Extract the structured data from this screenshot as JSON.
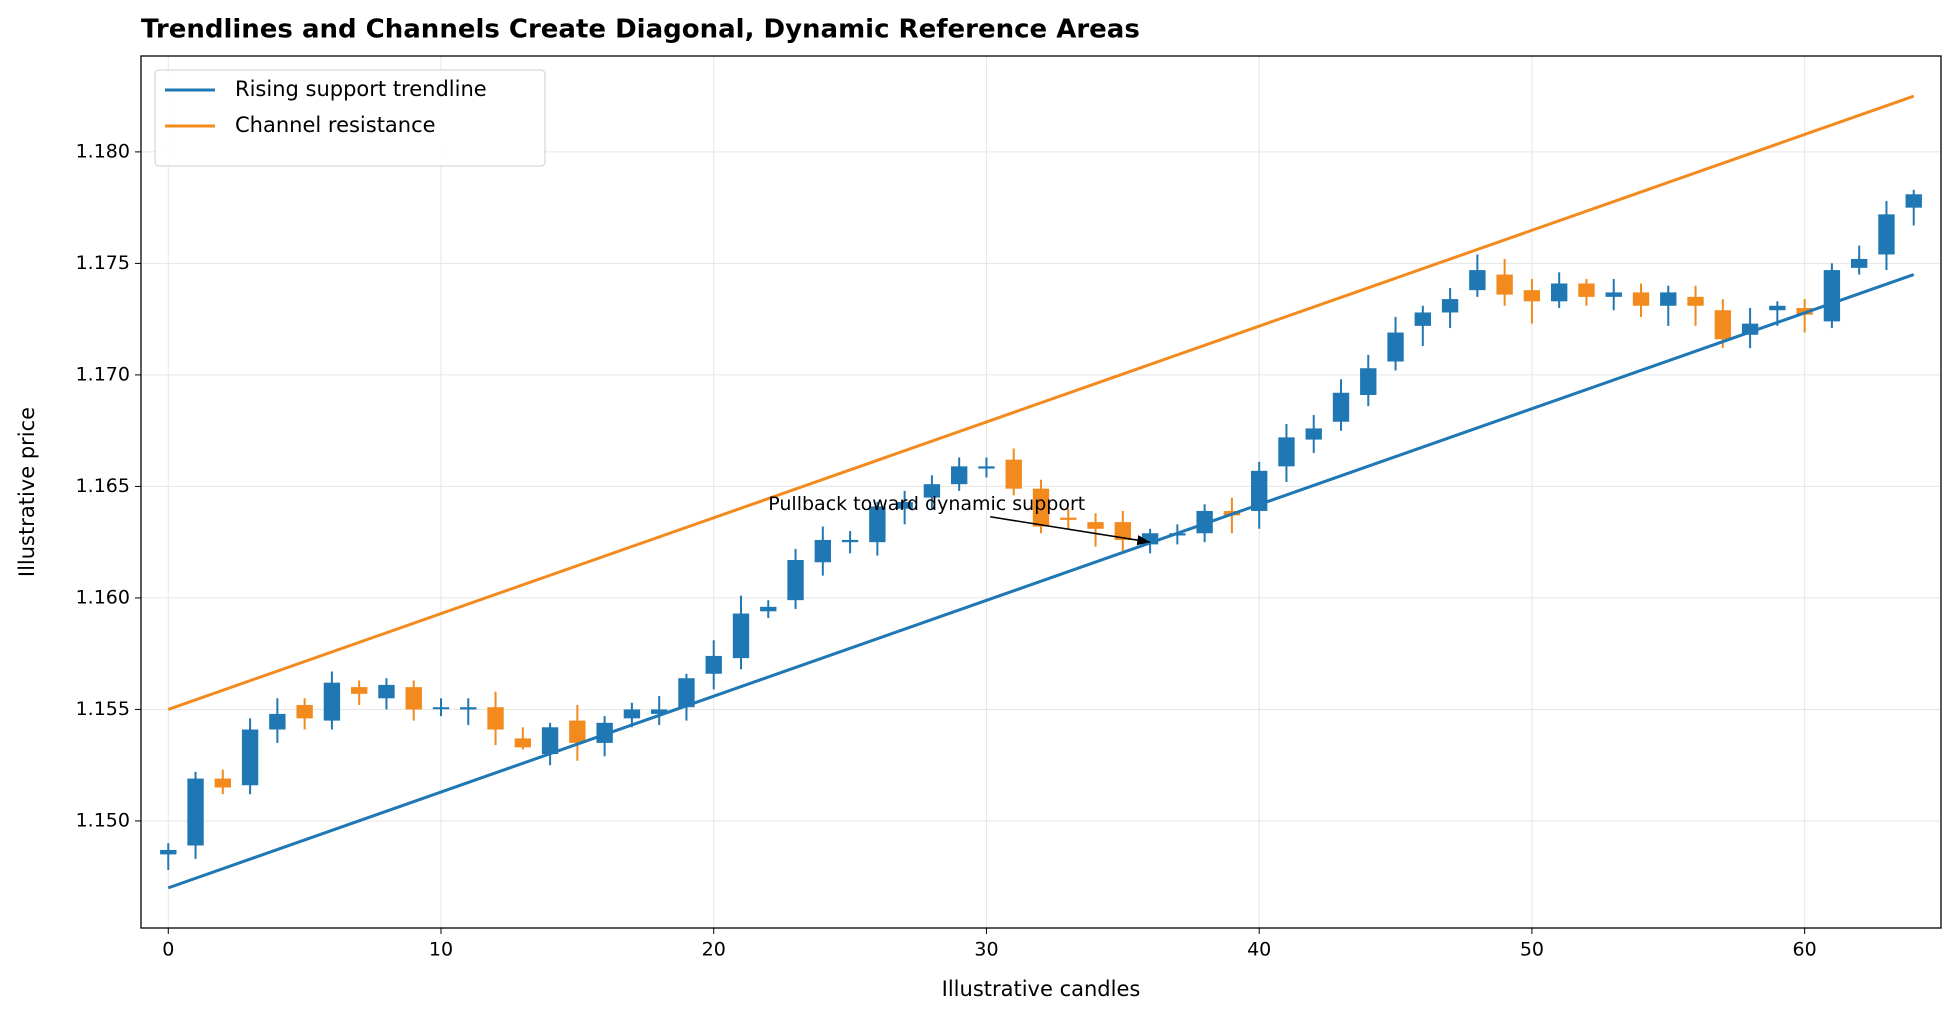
{
  "chart_data": {
    "type": "candlestick",
    "title": "Trendlines and Channels Create Diagonal, Dynamic Reference Areas",
    "x_label": "Illustrative candles",
    "y_label": "Illustrative price",
    "x": [
      0,
      1,
      2,
      3,
      4,
      5,
      6,
      7,
      8,
      9,
      10,
      11,
      12,
      13,
      14,
      15,
      16,
      17,
      18,
      19,
      20,
      21,
      22,
      23,
      24,
      25,
      26,
      27,
      28,
      29,
      30,
      31,
      32,
      33,
      34,
      35,
      36,
      37,
      38,
      39,
      40,
      41,
      42,
      43,
      44,
      45,
      46,
      47,
      48,
      49,
      50,
      51,
      52,
      53,
      54,
      55,
      56,
      57,
      58,
      59,
      60,
      61,
      62,
      63,
      64
    ],
    "open": [
      1.1485,
      1.1489,
      1.1519,
      1.1516,
      1.1541,
      1.1552,
      1.1545,
      1.156,
      1.1555,
      1.156,
      1.1551,
      1.155,
      1.1551,
      1.1537,
      1.153,
      1.1545,
      1.1535,
      1.1546,
      1.1548,
      1.1551,
      1.1566,
      1.1573,
      1.1594,
      1.1599,
      1.1616,
      1.1625,
      1.1625,
      1.164,
      1.1645,
      1.1651,
      1.1658,
      1.1662,
      1.1649,
      1.1636,
      1.1634,
      1.1634,
      1.1624,
      1.1628,
      1.1629,
      1.1639,
      1.1639,
      1.1659,
      1.1671,
      1.1679,
      1.1691,
      1.1706,
      1.1722,
      1.1728,
      1.1738,
      1.1745,
      1.1738,
      1.1733,
      1.1741,
      1.1735,
      1.1737,
      1.1731,
      1.1735,
      1.1729,
      1.1718,
      1.1729,
      1.173,
      1.1724,
      1.1748,
      1.1754,
      1.1775
    ],
    "high": [
      1.149,
      1.1522,
      1.1523,
      1.1546,
      1.1555,
      1.1555,
      1.1567,
      1.1563,
      1.1564,
      1.1563,
      1.1555,
      1.1555,
      1.1558,
      1.1542,
      1.1544,
      1.1552,
      1.1547,
      1.1553,
      1.1556,
      1.1566,
      1.1581,
      1.1601,
      1.1599,
      1.1622,
      1.1632,
      1.163,
      1.1643,
      1.1648,
      1.1655,
      1.1663,
      1.1663,
      1.1667,
      1.1653,
      1.164,
      1.1638,
      1.1639,
      1.1631,
      1.1633,
      1.1642,
      1.1645,
      1.1661,
      1.1678,
      1.1682,
      1.1698,
      1.1709,
      1.1726,
      1.1731,
      1.1739,
      1.1754,
      1.1752,
      1.1743,
      1.1746,
      1.1743,
      1.1743,
      1.1741,
      1.174,
      1.174,
      1.1734,
      1.173,
      1.1733,
      1.1734,
      1.175,
      1.1758,
      1.1778,
      1.1783
    ],
    "low": [
      1.1478,
      1.1483,
      1.1512,
      1.1512,
      1.1535,
      1.1541,
      1.1541,
      1.1552,
      1.155,
      1.1545,
      1.1547,
      1.1543,
      1.1534,
      1.1532,
      1.1525,
      1.1527,
      1.1529,
      1.1542,
      1.1543,
      1.1545,
      1.1559,
      1.1568,
      1.1591,
      1.1595,
      1.161,
      1.162,
      1.1619,
      1.1633,
      1.164,
      1.1648,
      1.1654,
      1.1646,
      1.1629,
      1.1631,
      1.1623,
      1.1621,
      1.162,
      1.1624,
      1.1625,
      1.1629,
      1.1631,
      1.1652,
      1.1665,
      1.1675,
      1.1686,
      1.1702,
      1.1713,
      1.1721,
      1.1735,
      1.1731,
      1.1723,
      1.173,
      1.1731,
      1.1729,
      1.1726,
      1.1722,
      1.1722,
      1.1712,
      1.1712,
      1.1722,
      1.1719,
      1.1721,
      1.1745,
      1.1747,
      1.1767
    ],
    "close": [
      1.1487,
      1.1519,
      1.1515,
      1.1541,
      1.1548,
      1.1546,
      1.1562,
      1.1557,
      1.1561,
      1.155,
      1.1551,
      1.1551,
      1.1541,
      1.1533,
      1.1542,
      1.1535,
      1.1544,
      1.155,
      1.155,
      1.1564,
      1.1574,
      1.1593,
      1.1596,
      1.1617,
      1.1626,
      1.1626,
      1.1641,
      1.1643,
      1.1651,
      1.1659,
      1.1659,
      1.1649,
      1.1632,
      1.1635,
      1.1631,
      1.1626,
      1.1629,
      1.1629,
      1.1639,
      1.1637,
      1.1657,
      1.1672,
      1.1676,
      1.1692,
      1.1703,
      1.1719,
      1.1728,
      1.1734,
      1.1747,
      1.1736,
      1.1733,
      1.1741,
      1.1735,
      1.1737,
      1.1731,
      1.1737,
      1.1731,
      1.1716,
      1.1723,
      1.1731,
      1.1727,
      1.1747,
      1.1752,
      1.1772,
      1.1781
    ],
    "up_color": "#1f77b4",
    "down_color": "#f28a1e",
    "lines": [
      {
        "name": "Rising support trendline",
        "color": "#1f77b4",
        "x": [
          0,
          64
        ],
        "values": [
          1.147,
          1.1745
        ]
      },
      {
        "name": "Channel resistance",
        "color": "#f28a1e",
        "x": [
          0,
          64
        ],
        "values": [
          1.155,
          1.1825
        ]
      }
    ],
    "annotation": {
      "text": "Pullback toward dynamic support",
      "xytext": [
        22,
        1.1642
      ],
      "xy": [
        36,
        1.1625
      ]
    },
    "xlim": [
      -1,
      65
    ],
    "ylim": [
      1.1452,
      1.1843
    ],
    "xticks": [
      0,
      10,
      20,
      30,
      40,
      50,
      60
    ],
    "yticks": [
      {
        "value": 1.15,
        "label": "1.150"
      },
      {
        "value": 1.155,
        "label": "1.155"
      },
      {
        "value": 1.16,
        "label": "1.160"
      },
      {
        "value": 1.165,
        "label": "1.165"
      },
      {
        "value": 1.17,
        "label": "1.170"
      },
      {
        "value": 1.175,
        "label": "1.175"
      },
      {
        "value": 1.18,
        "label": "1.180"
      }
    ],
    "grid": true,
    "legend": "upper left"
  }
}
